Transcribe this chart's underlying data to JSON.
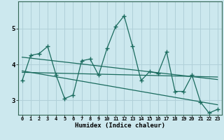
{
  "xlabel": "Humidex (Indice chaleur)",
  "bg_color": "#cce8ee",
  "line_color": "#1a6b5e",
  "grid_color": "#b0d0d8",
  "spine_color": "#336655",
  "xticks": [
    0,
    1,
    2,
    3,
    4,
    5,
    6,
    7,
    8,
    9,
    10,
    11,
    12,
    13,
    14,
    15,
    16,
    17,
    18,
    19,
    20,
    21,
    22,
    23
  ],
  "yticks": [
    3,
    4,
    5
  ],
  "ylim": [
    2.6,
    5.75
  ],
  "xlim": [
    -0.5,
    23.5
  ],
  "main_x": [
    0,
    1,
    2,
    3,
    4,
    5,
    6,
    7,
    8,
    9,
    10,
    11,
    12,
    13,
    14,
    15,
    16,
    17,
    18,
    19,
    20,
    21,
    22,
    23
  ],
  "main_y": [
    3.55,
    4.25,
    4.3,
    4.5,
    3.7,
    3.05,
    3.15,
    4.1,
    4.15,
    3.7,
    4.45,
    5.05,
    5.35,
    4.5,
    3.55,
    3.8,
    3.75,
    4.35,
    3.25,
    3.25,
    3.7,
    2.95,
    2.65,
    2.75
  ],
  "trend1_x": [
    0,
    23
  ],
  "trend1_y": [
    4.2,
    3.58
  ],
  "trend2_x": [
    0,
    23
  ],
  "trend2_y": [
    3.82,
    2.88
  ],
  "trend3_x": [
    0,
    23
  ],
  "trend3_y": [
    3.78,
    3.65
  ]
}
